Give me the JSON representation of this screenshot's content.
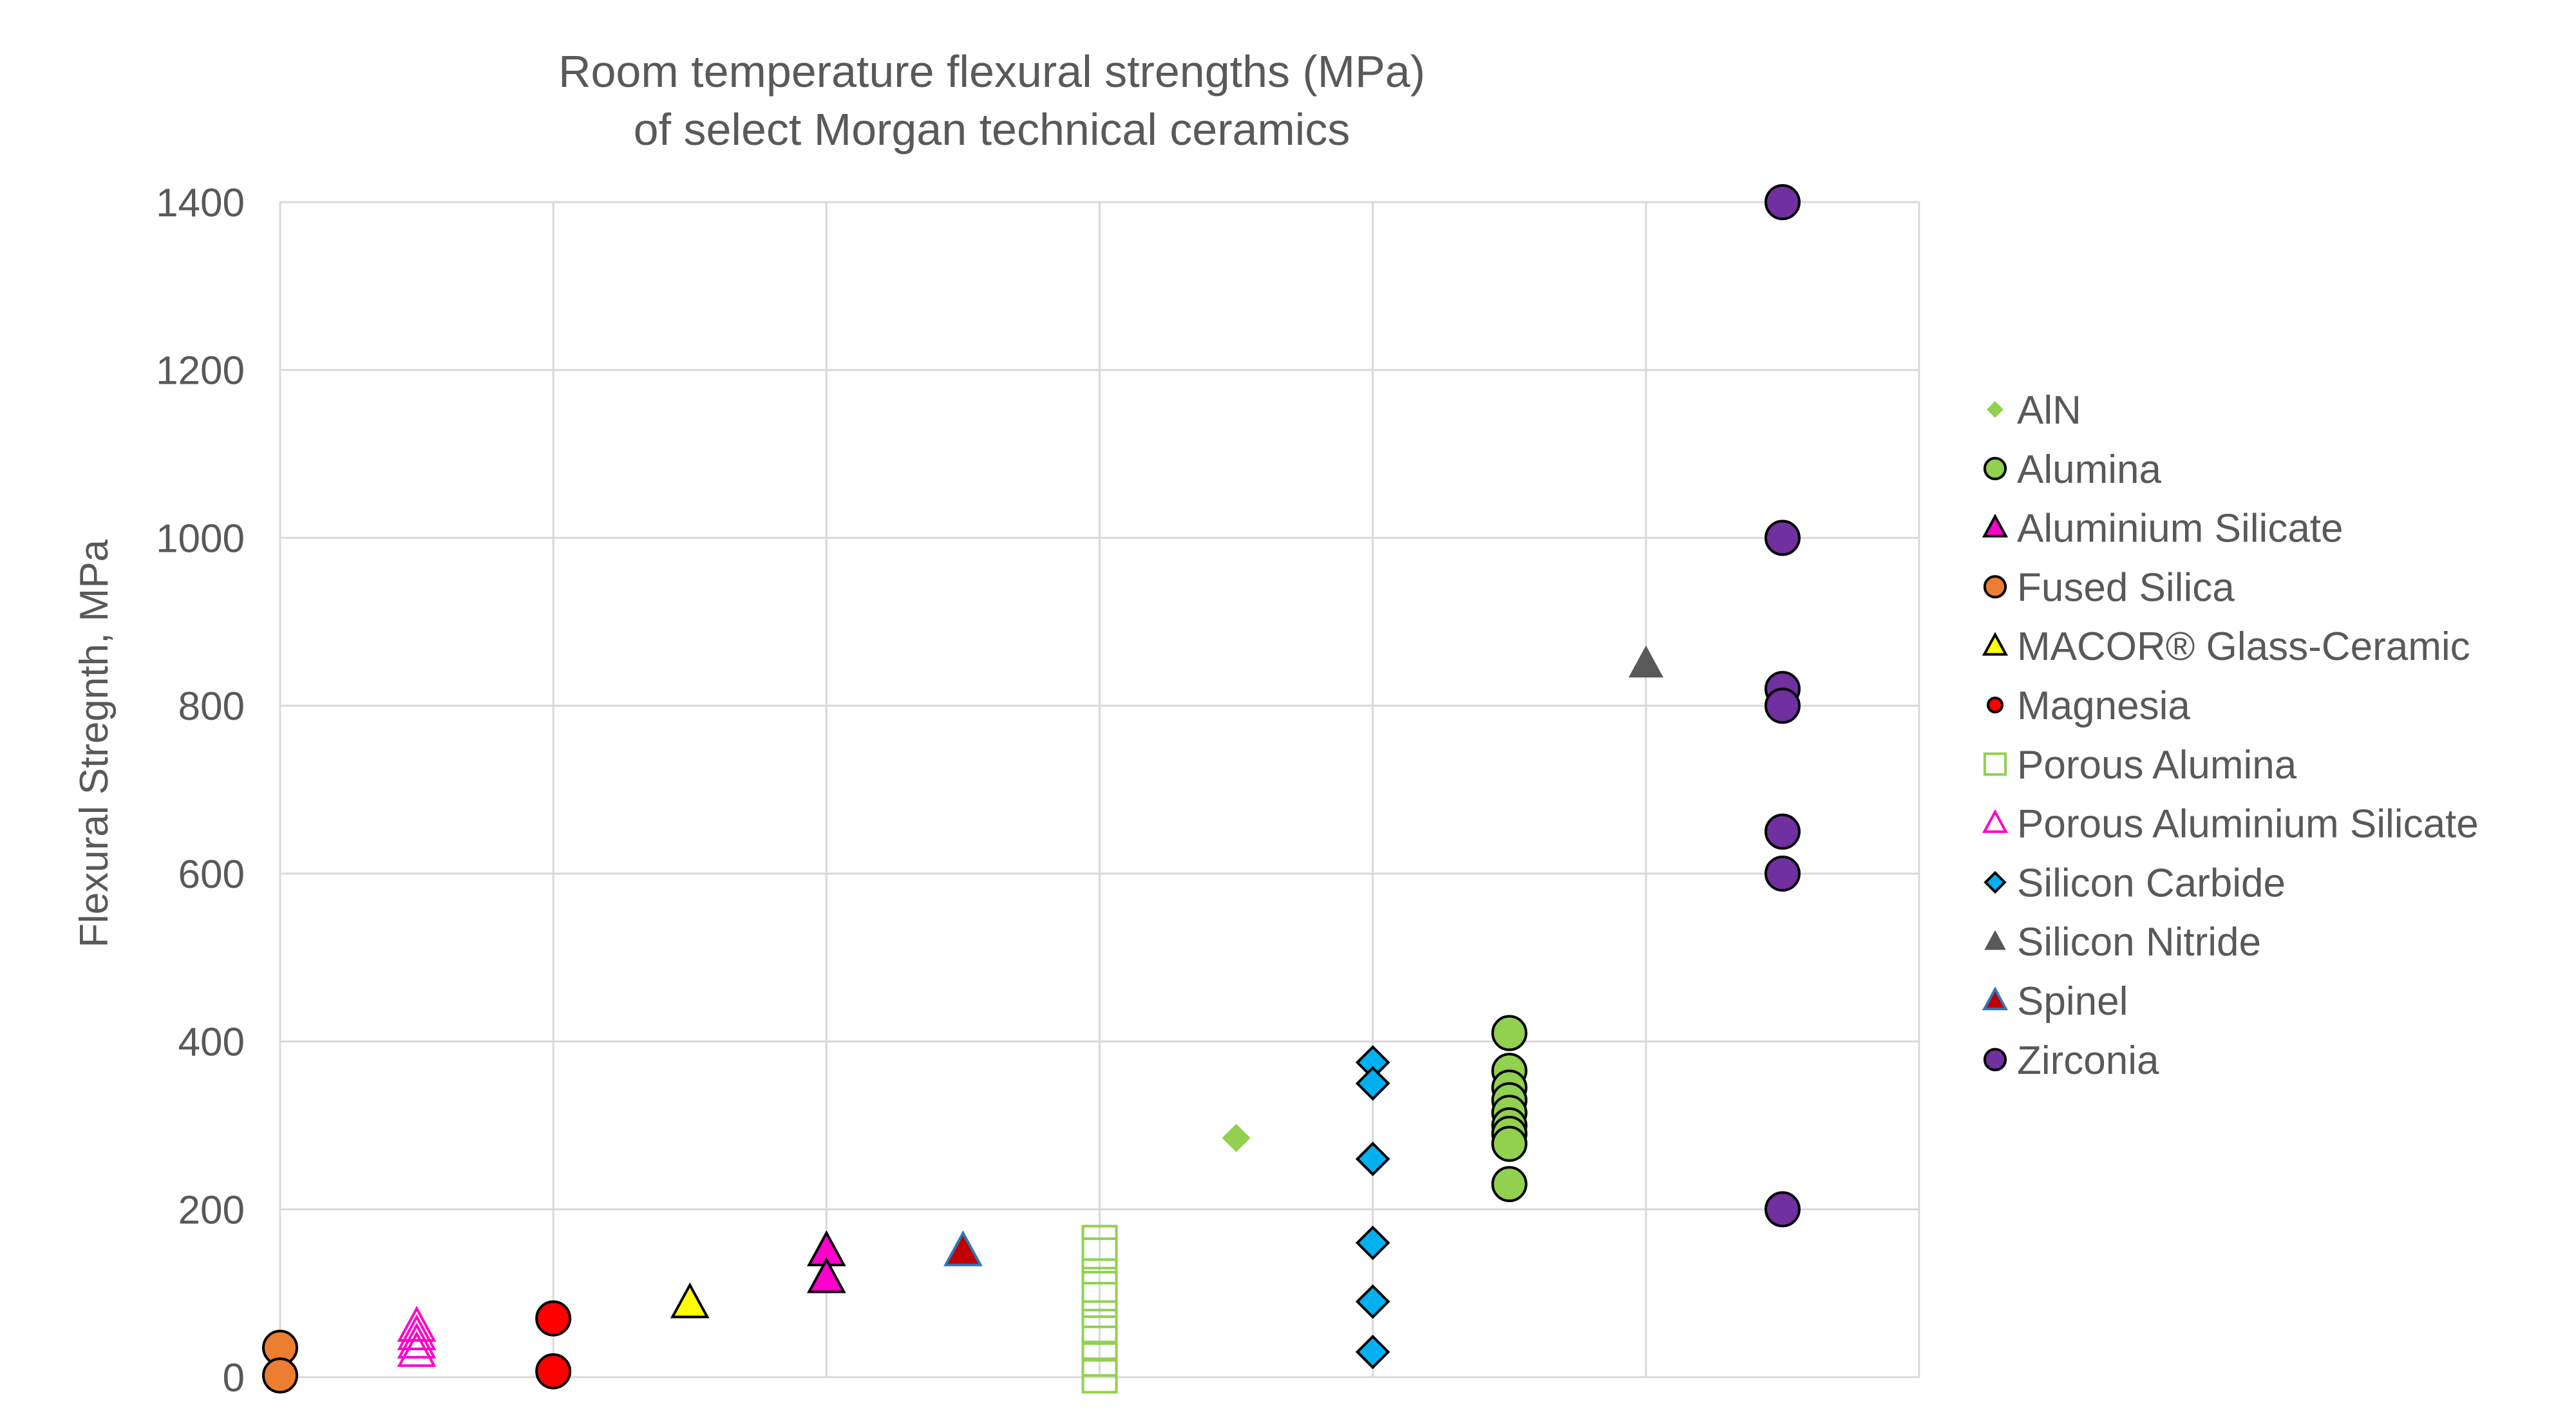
{
  "chart_data": {
    "type": "scatter",
    "title_lines": [
      "Room temperature flexural strengths (MPa)",
      "of select Morgan technical ceramics"
    ],
    "xlabel": "",
    "ylabel": "Flexural Stregnth, MPa",
    "ylim": [
      0,
      1400
    ],
    "xlim": [
      0,
      12
    ],
    "yticks": [
      0,
      200,
      400,
      600,
      800,
      1000,
      1200,
      1400
    ],
    "grid": true,
    "legend_position": "right",
    "series": [
      {
        "name": "AlN",
        "marker": "diamond",
        "fill": "#92D050",
        "stroke": "none",
        "size": 22,
        "points": [
          {
            "x": 7.0,
            "y": 285
          }
        ]
      },
      {
        "name": "Alumina",
        "marker": "circle",
        "fill": "#92D050",
        "stroke": "#000000",
        "size": 26,
        "points": [
          {
            "x": 9.0,
            "y": 410
          },
          {
            "x": 9.0,
            "y": 365
          },
          {
            "x": 9.0,
            "y": 345
          },
          {
            "x": 9.0,
            "y": 330
          },
          {
            "x": 9.0,
            "y": 315
          },
          {
            "x": 9.0,
            "y": 300
          },
          {
            "x": 9.0,
            "y": 290
          },
          {
            "x": 9.0,
            "y": 278
          },
          {
            "x": 9.0,
            "y": 230
          }
        ]
      },
      {
        "name": "Aluminium Silicate",
        "marker": "triangle",
        "fill": "#FF00CC",
        "stroke": "#000000",
        "size": 27,
        "points": [
          {
            "x": 4.0,
            "y": 150
          },
          {
            "x": 4.0,
            "y": 118
          }
        ]
      },
      {
        "name": "Fused Silica",
        "marker": "circle",
        "fill": "#ED7D31",
        "stroke": "#000000",
        "size": 26,
        "points": [
          {
            "x": 0.0,
            "y": 35
          },
          {
            "x": 0.0,
            "y": 2
          }
        ]
      },
      {
        "name": "MACOR® Glass-Ceramic",
        "marker": "triangle",
        "fill": "#FFFF00",
        "stroke": "#000000",
        "size": 27,
        "points": [
          {
            "x": 3.0,
            "y": 88
          }
        ]
      },
      {
        "name": "Magnesia",
        "marker": "circle",
        "fill": "#FF0000",
        "stroke": "#000000",
        "size": 26,
        "points": [
          {
            "x": 2.0,
            "y": 70
          },
          {
            "x": 2.0,
            "y": 7
          }
        ]
      },
      {
        "name": "Porous Alumina",
        "marker": "square",
        "fill": "none",
        "stroke": "#92D050",
        "size": 26,
        "points": [
          {
            "x": 6.0,
            "y": 160
          },
          {
            "x": 6.0,
            "y": 145
          },
          {
            "x": 6.0,
            "y": 110
          },
          {
            "x": 6.0,
            "y": 92
          },
          {
            "x": 6.0,
            "y": 60
          },
          {
            "x": 6.0,
            "y": 40
          },
          {
            "x": 6.0,
            "y": 22
          },
          {
            "x": 6.0,
            "y": 2
          }
        ]
      },
      {
        "name": "Porous Aluminium Silicate",
        "marker": "triangle",
        "fill": "none",
        "stroke": "#FF00CC",
        "size": 27,
        "points": [
          {
            "x": 1.0,
            "y": 60
          },
          {
            "x": 1.0,
            "y": 50
          },
          {
            "x": 1.0,
            "y": 40
          },
          {
            "x": 1.0,
            "y": 30
          }
        ]
      },
      {
        "name": "Silicon Carbide",
        "marker": "diamond",
        "fill": "#00B0F0",
        "stroke": "#000000",
        "size": 24,
        "points": [
          {
            "x": 8.0,
            "y": 375
          },
          {
            "x": 8.0,
            "y": 350
          },
          {
            "x": 8.0,
            "y": 260
          },
          {
            "x": 8.0,
            "y": 160
          },
          {
            "x": 8.0,
            "y": 90
          },
          {
            "x": 8.0,
            "y": 30
          }
        ]
      },
      {
        "name": "Silicon Nitride",
        "marker": "triangle",
        "fill": "#595959",
        "stroke": "none",
        "size": 27,
        "points": [
          {
            "x": 10.0,
            "y": 850
          }
        ]
      },
      {
        "name": "Spinel",
        "marker": "triangle",
        "fill": "#C00000",
        "stroke": "#2E75B6",
        "size": 27,
        "points": [
          {
            "x": 5.0,
            "y": 150
          }
        ]
      },
      {
        "name": "Zirconia",
        "marker": "circle",
        "fill": "#7030A0",
        "stroke": "#000000",
        "size": 26,
        "points": [
          {
            "x": 11.0,
            "y": 1400
          },
          {
            "x": 11.0,
            "y": 1000
          },
          {
            "x": 11.0,
            "y": 820
          },
          {
            "x": 11.0,
            "y": 800
          },
          {
            "x": 11.0,
            "y": 650
          },
          {
            "x": 11.0,
            "y": 600
          },
          {
            "x": 11.0,
            "y": 200
          }
        ]
      }
    ]
  }
}
